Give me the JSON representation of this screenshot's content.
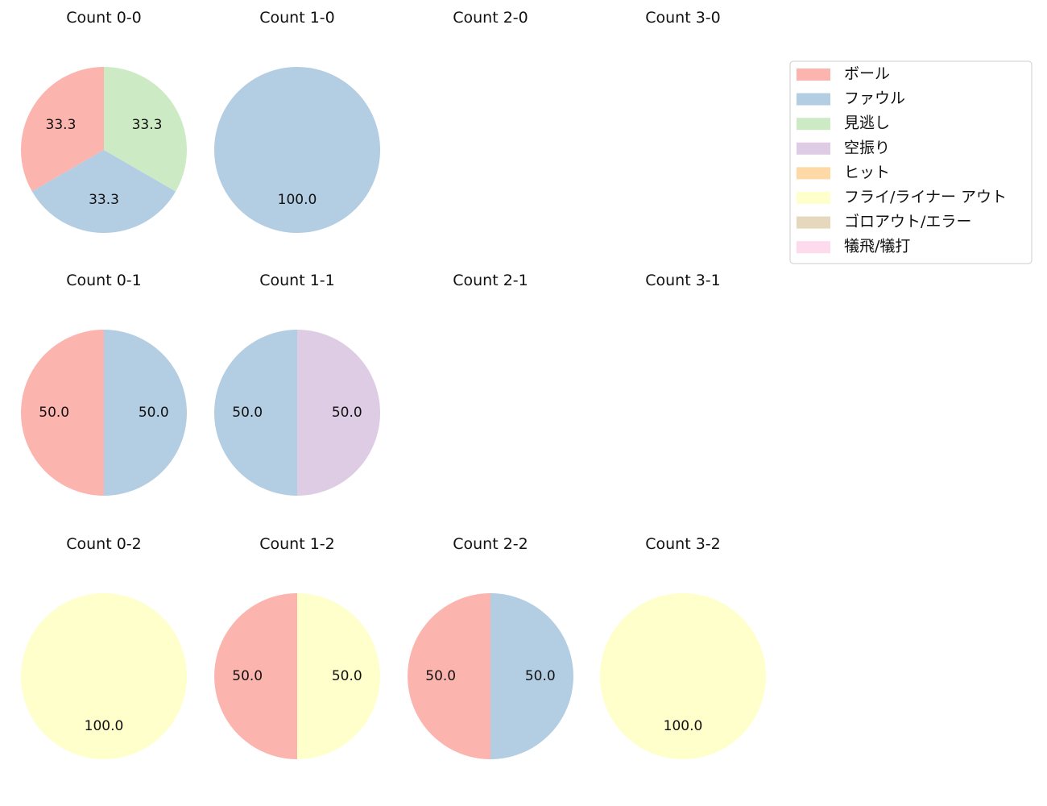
{
  "legend": {
    "items": [
      {
        "label": "ボール",
        "color": "#fbb4ae"
      },
      {
        "label": "ファウル",
        "color": "#b3cde3"
      },
      {
        "label": "見逃し",
        "color": "#ccebc5"
      },
      {
        "label": "空振り",
        "color": "#decbe4"
      },
      {
        "label": "ヒット",
        "color": "#fed9a6"
      },
      {
        "label": "フライ/ライナー アウト",
        "color": "#ffffcc"
      },
      {
        "label": "ゴロアウト/エラー",
        "color": "#e5d8bd"
      },
      {
        "label": "犠飛/犠打",
        "color": "#fddaec"
      }
    ],
    "placement": "top-right"
  },
  "chart_data": [
    {
      "type": "pie",
      "title": "Count 0-0",
      "row": 0,
      "col": 0,
      "slices": [
        {
          "category": "ボール",
          "value": 33.3
        },
        {
          "category": "ファウル",
          "value": 33.3
        },
        {
          "category": "見逃し",
          "value": 33.3
        }
      ],
      "labels": [
        "33.3",
        "33.3",
        "33.3"
      ]
    },
    {
      "type": "pie",
      "title": "Count 1-0",
      "row": 0,
      "col": 1,
      "slices": [
        {
          "category": "ファウル",
          "value": 100.0
        }
      ],
      "labels": [
        "100.0"
      ]
    },
    {
      "type": "pie",
      "title": "Count 2-0",
      "row": 0,
      "col": 2,
      "slices": [],
      "labels": []
    },
    {
      "type": "pie",
      "title": "Count 3-0",
      "row": 0,
      "col": 3,
      "slices": [],
      "labels": []
    },
    {
      "type": "pie",
      "title": "Count 0-1",
      "row": 1,
      "col": 0,
      "slices": [
        {
          "category": "ボール",
          "value": 50.0
        },
        {
          "category": "ファウル",
          "value": 50.0
        }
      ],
      "labels": [
        "50.0",
        "50.0"
      ]
    },
    {
      "type": "pie",
      "title": "Count 1-1",
      "row": 1,
      "col": 1,
      "slices": [
        {
          "category": "ファウル",
          "value": 50.0
        },
        {
          "category": "空振り",
          "value": 50.0
        }
      ],
      "labels": [
        "50.0",
        "50.0"
      ]
    },
    {
      "type": "pie",
      "title": "Count 2-1",
      "row": 1,
      "col": 2,
      "slices": [],
      "labels": []
    },
    {
      "type": "pie",
      "title": "Count 3-1",
      "row": 1,
      "col": 3,
      "slices": [],
      "labels": []
    },
    {
      "type": "pie",
      "title": "Count 0-2",
      "row": 2,
      "col": 0,
      "slices": [
        {
          "category": "フライ/ライナー アウト",
          "value": 100.0
        }
      ],
      "labels": [
        "100.0"
      ]
    },
    {
      "type": "pie",
      "title": "Count 1-2",
      "row": 2,
      "col": 1,
      "slices": [
        {
          "category": "ボール",
          "value": 50.0
        },
        {
          "category": "フライ/ライナー アウト",
          "value": 50.0
        }
      ],
      "labels": [
        "50.0",
        "50.0"
      ]
    },
    {
      "type": "pie",
      "title": "Count 2-2",
      "row": 2,
      "col": 2,
      "slices": [
        {
          "category": "ボール",
          "value": 50.0
        },
        {
          "category": "ファウル",
          "value": 50.0
        }
      ],
      "labels": [
        "50.0",
        "50.0"
      ]
    },
    {
      "type": "pie",
      "title": "Count 3-2",
      "row": 2,
      "col": 3,
      "slices": [
        {
          "category": "フライ/ライナー アウト",
          "value": 100.0
        }
      ],
      "labels": [
        "100.0"
      ]
    }
  ]
}
